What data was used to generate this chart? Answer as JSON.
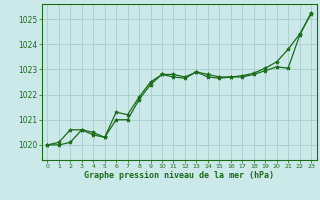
{
  "background_color": "#cce9e9",
  "grid_color": "#aacccc",
  "line_color": "#1a6b1a",
  "marker_color": "#1a6b1a",
  "xlabel": "Graphe pression niveau de la mer (hPa)",
  "ylim": [
    1019.4,
    1025.6
  ],
  "xlim": [
    -0.5,
    23.5
  ],
  "yticks": [
    1020,
    1021,
    1022,
    1023,
    1024,
    1025
  ],
  "xticks": [
    0,
    1,
    2,
    3,
    4,
    5,
    6,
    7,
    8,
    9,
    10,
    11,
    12,
    13,
    14,
    15,
    16,
    17,
    18,
    19,
    20,
    21,
    22,
    23
  ],
  "series1_x": [
    0,
    1,
    2,
    3,
    4,
    5,
    6,
    7,
    8,
    9,
    10,
    11,
    12,
    13,
    14,
    15,
    16,
    17,
    18,
    19,
    20,
    21,
    22,
    23
  ],
  "series1_y": [
    1020.0,
    1020.1,
    1020.6,
    1020.6,
    1020.5,
    1020.3,
    1021.3,
    1021.2,
    1021.9,
    1022.5,
    1022.8,
    1022.8,
    1022.7,
    1022.9,
    1022.8,
    1022.7,
    1022.7,
    1022.75,
    1022.85,
    1023.05,
    1023.3,
    1023.8,
    1024.4,
    1025.2
  ],
  "series2_x": [
    0,
    1,
    2,
    3,
    4,
    5,
    6,
    7,
    8,
    9,
    10,
    11,
    12,
    13,
    14,
    15,
    16,
    17,
    18,
    19,
    20,
    21,
    22,
    23
  ],
  "series2_y": [
    1020.0,
    1020.0,
    1020.1,
    1020.6,
    1020.4,
    1020.3,
    1021.0,
    1021.0,
    1021.8,
    1022.4,
    1022.8,
    1022.7,
    1022.65,
    1022.9,
    1022.7,
    1022.65,
    1022.7,
    1022.7,
    1022.8,
    1022.95,
    1023.1,
    1023.05,
    1024.35,
    1025.25
  ]
}
